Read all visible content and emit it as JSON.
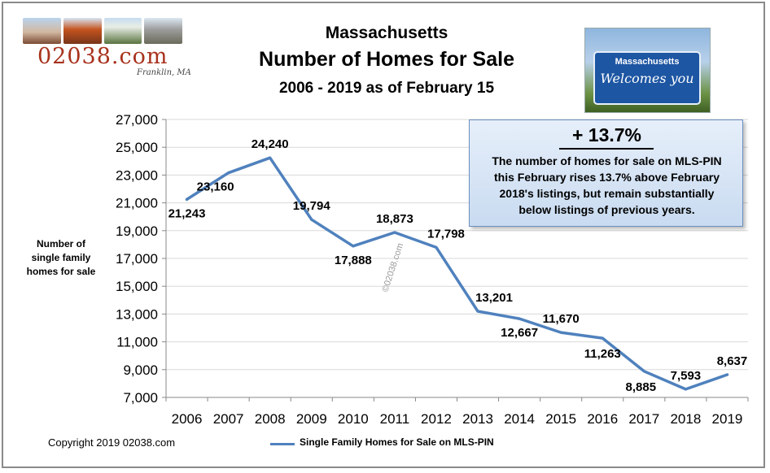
{
  "logo": {
    "site_name": "02038.com",
    "signature": "Franklin, MA"
  },
  "titles": {
    "line1": "Massachusetts",
    "line2": "Number of Homes for Sale",
    "line3": "2006 - 2019 as of February 15"
  },
  "sign_image": {
    "top_text": "Massachusetts",
    "script_text": "Welcomes you"
  },
  "callout": {
    "headline": "+ 13.7%",
    "line1": "The number of homes for sale on MLS-PIN",
    "line2": "this February rises 13.7% above February",
    "line3": "2018's listings, but remain substantially",
    "line4": "below listings of previous years."
  },
  "watermark": "©02038.com",
  "copyright": "Copyright 2019 02038.com",
  "colors": {
    "line": "#4f81bd",
    "grid": "#d9d9d9",
    "callout_border": "#6b8fbf"
  },
  "chart_data": {
    "type": "line",
    "title": "Number of Homes for Sale",
    "ylabel": [
      "Number of",
      "single family",
      "homes for sale"
    ],
    "xlabel": "",
    "categories": [
      "2006",
      "2007",
      "2008",
      "2009",
      "2010",
      "2011",
      "2012",
      "2013",
      "2014",
      "2015",
      "2016",
      "2017",
      "2018",
      "2019"
    ],
    "series": [
      {
        "name": "Single Family Homes for Sale on MLS-PIN",
        "values": [
          21243,
          23160,
          24240,
          19794,
          17888,
          18873,
          17798,
          13201,
          12667,
          11670,
          11263,
          8885,
          7593,
          8637
        ],
        "labels": [
          "21,243",
          "23,160",
          "24,240",
          "19,794",
          "17,888",
          "18,873",
          "17,798",
          "13,201",
          "12,667",
          "11,670",
          "11,263",
          "8,885",
          "7,593",
          "8,637"
        ]
      }
    ],
    "ylim": [
      7000,
      27000
    ],
    "yticks": [
      7000,
      9000,
      11000,
      13000,
      15000,
      17000,
      19000,
      21000,
      23000,
      25000,
      27000
    ],
    "ytick_labels": [
      "7,000",
      "9,000",
      "11,000",
      "13,000",
      "15,000",
      "17,000",
      "19,000",
      "21,000",
      "23,000",
      "25,000",
      "27,000"
    ],
    "grid": true,
    "legend": "bottom"
  }
}
